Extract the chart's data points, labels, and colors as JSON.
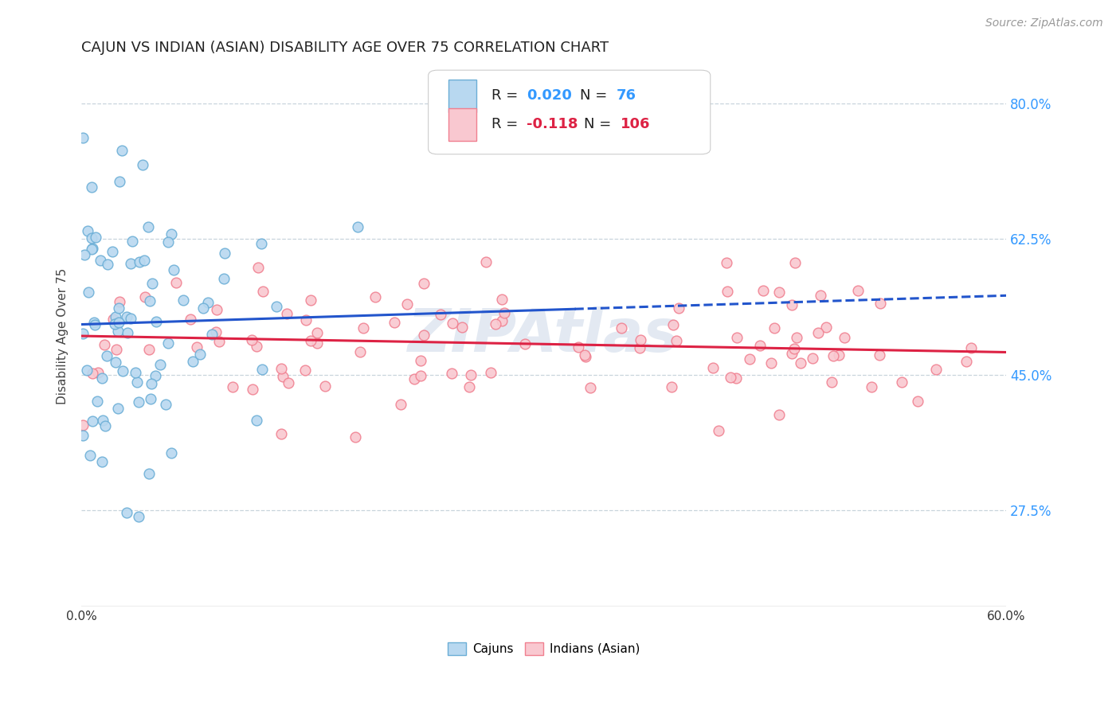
{
  "title": "CAJUN VS INDIAN (ASIAN) DISABILITY AGE OVER 75 CORRELATION CHART",
  "source": "Source: ZipAtlas.com",
  "ylabel": "Disability Age Over 75",
  "xlim": [
    0.0,
    0.6
  ],
  "ylim": [
    0.15,
    0.85
  ],
  "xtick_positions": [
    0.0,
    0.1,
    0.2,
    0.3,
    0.4,
    0.5,
    0.6
  ],
  "xticklabels": [
    "0.0%",
    "",
    "",
    "",
    "",
    "",
    "60.0%"
  ],
  "ytick_positions": [
    0.275,
    0.45,
    0.625,
    0.8
  ],
  "ytick_labels": [
    "27.5%",
    "45.0%",
    "62.5%",
    "80.0%"
  ],
  "cajun_edge_color": "#6baed6",
  "cajun_face_color": "#b8d8f0",
  "indian_edge_color": "#f08090",
  "indian_face_color": "#f9c8d0",
  "trend_cajun_color": "#2255cc",
  "trend_indian_color": "#dd2244",
  "watermark_color": "#ccd8e8",
  "cajun_R": 0.02,
  "cajun_N": 76,
  "indian_R": -0.118,
  "indian_N": 106,
  "grid_color": "#c8d4dc",
  "background_color": "#ffffff",
  "title_fontsize": 13,
  "source_fontsize": 10,
  "axis_label_fontsize": 11,
  "tick_fontsize": 11,
  "legend_color_blue": "#3399ff",
  "legend_color_red": "#dd2244",
  "legend_text_color": "#222222"
}
